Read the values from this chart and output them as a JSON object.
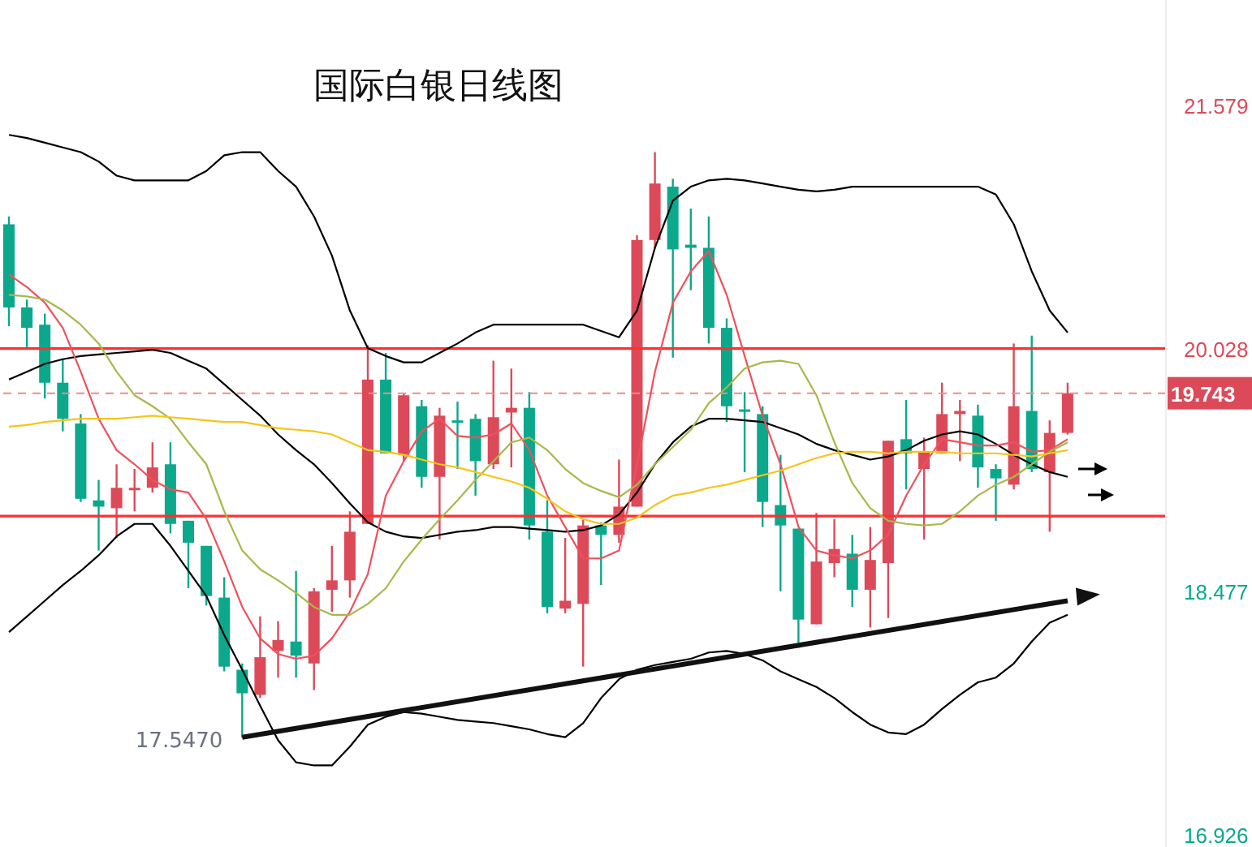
{
  "chart_data": {
    "type": "candlestick",
    "title": "国际白银日线图",
    "categories": [
      null,
      null,
      null,
      null,
      null,
      null,
      null,
      null,
      null,
      null,
      null,
      null,
      null,
      null,
      null,
      null,
      null,
      null,
      null,
      null,
      null,
      null,
      null,
      null,
      null,
      null,
      null,
      null,
      null,
      null,
      null,
      null,
      null,
      null,
      null,
      null,
      null,
      null,
      null,
      null,
      null,
      null,
      null,
      null,
      null,
      null,
      null,
      null,
      null,
      null,
      null,
      null,
      null,
      null,
      null,
      null,
      null,
      null,
      null,
      null
    ],
    "ohlc": [
      [
        20.82,
        20.87,
        20.17,
        20.29
      ],
      [
        20.29,
        20.34,
        20.03,
        20.16
      ],
      [
        20.18,
        20.25,
        19.71,
        19.81
      ],
      [
        19.81,
        19.96,
        19.5,
        19.58
      ],
      [
        19.55,
        19.61,
        19.05,
        19.07
      ],
      [
        19.06,
        19.19,
        18.74,
        19.02
      ],
      [
        19.01,
        19.29,
        18.82,
        19.14
      ],
      [
        19.13,
        19.26,
        18.99,
        19.14
      ],
      [
        19.14,
        19.43,
        19.11,
        19.27
      ],
      [
        19.29,
        19.43,
        18.85,
        18.91
      ],
      [
        18.93,
        18.93,
        18.5,
        18.79
      ],
      [
        18.77,
        18.77,
        18.39,
        18.45
      ],
      [
        18.44,
        18.57,
        17.97,
        18.0
      ],
      [
        17.98,
        18.02,
        17.547,
        17.83
      ],
      [
        17.82,
        18.32,
        17.8,
        18.06
      ],
      [
        18.1,
        18.29,
        17.93,
        18.17
      ],
      [
        18.16,
        18.61,
        17.93,
        18.07
      ],
      [
        18.02,
        18.5,
        17.85,
        18.48
      ],
      [
        18.49,
        18.77,
        18.35,
        18.55
      ],
      [
        18.55,
        18.99,
        18.44,
        18.86
      ],
      [
        18.91,
        20.05,
        18.91,
        19.83
      ],
      [
        19.83,
        20.0,
        19.36,
        19.36
      ],
      [
        19.35,
        19.74,
        19.31,
        19.73
      ],
      [
        19.66,
        19.7,
        19.14,
        19.21
      ],
      [
        19.21,
        19.65,
        18.81,
        19.6
      ],
      [
        19.57,
        19.69,
        19.26,
        19.56
      ],
      [
        19.58,
        19.61,
        19.09,
        19.31
      ],
      [
        19.29,
        19.95,
        19.26,
        19.59
      ],
      [
        19.62,
        19.9,
        19.27,
        19.65
      ],
      [
        19.65,
        19.75,
        18.81,
        18.9
      ],
      [
        18.86,
        19.06,
        18.34,
        18.38
      ],
      [
        18.37,
        18.82,
        18.34,
        18.42
      ],
      [
        18.4,
        18.94,
        18.0,
        18.9
      ],
      [
        18.9,
        18.92,
        18.52,
        18.84
      ],
      [
        18.84,
        19.32,
        18.79,
        19.02
      ],
      [
        19.02,
        20.75,
        19.02,
        20.72
      ],
      [
        20.72,
        21.28,
        20.67,
        21.08
      ],
      [
        21.06,
        21.11,
        19.97,
        20.66
      ],
      [
        20.69,
        20.92,
        20.4,
        20.67
      ],
      [
        20.67,
        20.87,
        20.06,
        20.16
      ],
      [
        20.16,
        20.22,
        19.56,
        19.66
      ],
      [
        19.64,
        19.75,
        19.24,
        19.63
      ],
      [
        19.61,
        19.66,
        18.89,
        19.05
      ],
      [
        19.03,
        19.35,
        18.48,
        18.9
      ],
      [
        18.88,
        18.88,
        18.12,
        18.3
      ],
      [
        18.27,
        18.98,
        18.27,
        18.67
      ],
      [
        18.66,
        18.94,
        18.57,
        18.75
      ],
      [
        18.72,
        18.84,
        18.38,
        18.49
      ],
      [
        18.49,
        18.89,
        18.25,
        18.68
      ],
      [
        18.66,
        19.44,
        18.31,
        19.44
      ],
      [
        19.45,
        19.7,
        19.13,
        19.36
      ],
      [
        19.26,
        19.46,
        18.81,
        19.37
      ],
      [
        19.36,
        19.81,
        19.36,
        19.61
      ],
      [
        19.61,
        19.7,
        19.31,
        19.63
      ],
      [
        19.6,
        19.67,
        19.14,
        19.27
      ],
      [
        19.26,
        19.29,
        18.93,
        19.2
      ],
      [
        19.16,
        20.06,
        19.13,
        19.66
      ],
      [
        19.63,
        20.11,
        19.24,
        19.26
      ],
      [
        19.24,
        19.57,
        18.86,
        19.49
      ],
      [
        19.49,
        19.81,
        19.48,
        19.743
      ]
    ],
    "colors": [
      "#0ca88c",
      "#0ca88c",
      "#0ca88c",
      "#0ca88c",
      "#0ca88c",
      "#0ca88c",
      "#dc4a5a",
      "#dc4a5a",
      "#dc4a5a",
      "#0ca88c",
      "#0ca88c",
      "#0ca88c",
      "#0ca88c",
      "#0ca88c",
      "#dc4a5a",
      "#dc4a5a",
      "#0ca88c",
      "#dc4a5a",
      "#dc4a5a",
      "#dc4a5a",
      "#dc4a5a",
      "#0ca88c",
      "#dc4a5a",
      "#0ca88c",
      "#dc4a5a",
      "#0ca88c",
      "#0ca88c",
      "#dc4a5a",
      "#dc4a5a",
      "#0ca88c",
      "#0ca88c",
      "#dc4a5a",
      "#dc4a5a",
      "#0ca88c",
      "#dc4a5a",
      "#dc4a5a",
      "#dc4a5a",
      "#0ca88c",
      "#0ca88c",
      "#0ca88c",
      "#0ca88c",
      "#0ca88c",
      "#0ca88c",
      "#0ca88c",
      "#0ca88c",
      "#dc4a5a",
      "#dc4a5a",
      "#0ca88c",
      "#dc4a5a",
      "#dc4a5a",
      "#0ca88c",
      "#dc4a5a",
      "#dc4a5a",
      "#dc4a5a",
      "#0ca88c",
      "#0ca88c",
      "#dc4a5a",
      "#0ca88c",
      "#dc4a5a",
      "#dc4a5a"
    ],
    "series": [
      {
        "type": "line",
        "color": "#000000",
        "values": [
          21.39,
          21.37,
          21.34,
          21.31,
          21.28,
          21.22,
          21.13,
          21.1,
          21.1,
          21.1,
          21.1,
          21.16,
          21.26,
          21.28,
          21.28,
          21.16,
          21.06,
          20.87,
          20.62,
          20.27,
          20.03,
          19.98,
          19.94,
          19.94,
          20.0,
          20.06,
          20.13,
          20.18,
          20.18,
          20.18,
          20.18,
          20.18,
          20.18,
          20.14,
          20.1,
          20.27,
          20.67,
          20.97,
          21.06,
          21.1,
          21.11,
          21.1,
          21.08,
          21.06,
          21.04,
          21.03,
          21.04,
          21.06,
          21.06,
          21.06,
          21.06,
          21.06,
          21.06,
          21.06,
          21.06,
          21.01,
          20.82,
          20.52,
          20.27,
          20.13
        ]
      },
      {
        "type": "line",
        "color": "#000000",
        "values": [
          19.83,
          19.88,
          19.93,
          19.96,
          19.98,
          19.99,
          20.0,
          20.01,
          20.02,
          20.0,
          19.95,
          19.9,
          19.8,
          19.7,
          19.6,
          19.48,
          19.38,
          19.29,
          19.17,
          19.04,
          18.92,
          18.86,
          18.83,
          18.82,
          18.84,
          18.86,
          18.87,
          18.89,
          18.89,
          18.88,
          18.87,
          18.86,
          18.87,
          18.9,
          18.97,
          19.11,
          19.29,
          19.43,
          19.53,
          19.58,
          19.58,
          19.57,
          19.56,
          19.52,
          19.48,
          19.42,
          19.38,
          19.35,
          19.32,
          19.34,
          19.38,
          19.44,
          19.48,
          19.5,
          19.48,
          19.42,
          19.35,
          19.29,
          19.24,
          19.21
        ]
      },
      {
        "type": "line",
        "color": "#000000",
        "values": [
          18.22,
          18.32,
          18.42,
          18.52,
          18.61,
          18.71,
          18.83,
          18.91,
          18.91,
          18.77,
          18.61,
          18.45,
          18.2,
          17.98,
          17.75,
          17.53,
          17.39,
          17.37,
          17.37,
          17.49,
          17.63,
          17.68,
          17.71,
          17.7,
          17.68,
          17.66,
          17.65,
          17.64,
          17.62,
          17.6,
          17.57,
          17.55,
          17.64,
          17.8,
          17.92,
          17.98,
          18.01,
          18.03,
          18.05,
          18.09,
          18.1,
          18.08,
          18.04,
          17.97,
          17.92,
          17.87,
          17.8,
          17.71,
          17.63,
          17.58,
          17.57,
          17.63,
          17.73,
          17.82,
          17.9,
          17.93,
          18.02,
          18.16,
          18.28,
          18.33
        ]
      },
      {
        "type": "line",
        "color": "#f0505a",
        "values": [
          20.5,
          20.42,
          20.32,
          20.16,
          19.88,
          19.58,
          19.38,
          19.29,
          19.19,
          19.13,
          19.11,
          18.94,
          18.67,
          18.38,
          18.18,
          18.08,
          18.05,
          18.07,
          18.18,
          18.35,
          18.59,
          19.09,
          19.31,
          19.5,
          19.58,
          19.47,
          19.46,
          19.48,
          19.55,
          19.38,
          19.09,
          18.89,
          18.69,
          18.69,
          18.74,
          19.29,
          19.88,
          20.32,
          20.52,
          20.65,
          20.37,
          19.98,
          19.6,
          19.29,
          18.89,
          18.74,
          18.71,
          18.69,
          18.74,
          18.84,
          19.09,
          19.29,
          19.45,
          19.43,
          19.41,
          19.41,
          19.43,
          19.37,
          19.38,
          19.45
        ]
      },
      {
        "type": "line",
        "color": "#a8b84a",
        "values": [
          20.37,
          20.36,
          20.34,
          20.27,
          20.18,
          20.06,
          19.88,
          19.73,
          19.66,
          19.58,
          19.43,
          19.29,
          18.99,
          18.74,
          18.62,
          18.55,
          18.47,
          18.38,
          18.33,
          18.33,
          18.4,
          18.5,
          18.67,
          18.81,
          18.94,
          19.06,
          19.19,
          19.31,
          19.43,
          19.46,
          19.38,
          19.26,
          19.17,
          19.12,
          19.08,
          19.16,
          19.29,
          19.4,
          19.51,
          19.68,
          19.78,
          19.9,
          19.94,
          19.95,
          19.93,
          19.73,
          19.43,
          19.17,
          19.01,
          18.93,
          18.91,
          18.9,
          18.91,
          18.99,
          19.09,
          19.16,
          19.21,
          19.29,
          19.37,
          19.43
        ]
      },
      {
        "type": "line",
        "color": "#f5c518",
        "values": [
          19.53,
          19.54,
          19.56,
          19.57,
          19.58,
          19.58,
          19.58,
          19.59,
          19.6,
          19.59,
          19.58,
          19.57,
          19.56,
          19.56,
          19.54,
          19.52,
          19.51,
          19.5,
          19.48,
          19.43,
          19.38,
          19.37,
          19.35,
          19.32,
          19.29,
          19.27,
          19.24,
          19.21,
          19.18,
          19.14,
          19.07,
          18.99,
          18.94,
          18.91,
          18.91,
          18.95,
          19.03,
          19.09,
          19.11,
          19.14,
          19.16,
          19.19,
          19.22,
          19.25,
          19.29,
          19.33,
          19.36,
          19.37,
          19.37,
          19.36,
          19.37,
          19.37,
          19.37,
          19.36,
          19.36,
          19.36,
          19.35,
          19.34,
          19.36,
          19.38
        ]
      },
      {
        "type": "line",
        "color": "#111111",
        "values": [
          null,
          null,
          null,
          null,
          null,
          null,
          null,
          null,
          null,
          null,
          null,
          null,
          null,
          17.55,
          null,
          null,
          null,
          null,
          null,
          null,
          null,
          null,
          null,
          null,
          null,
          null,
          null,
          null,
          null,
          null,
          null,
          null,
          null,
          null,
          null,
          null,
          null,
          null,
          null,
          null,
          null,
          null,
          null,
          null,
          null,
          null,
          null,
          null,
          null,
          null,
          null,
          null,
          null,
          null,
          null,
          null,
          null,
          null,
          null,
          18.42
        ]
      }
    ],
    "marker": "none",
    "ylim": [
      16.85,
      22.25
    ],
    "yticks": [
      21.579,
      20.028,
      18.477,
      16.926
    ],
    "tick_labels": "y",
    "grid": false,
    "ref_lines": [
      {
        "axis": "y",
        "value": 20.028,
        "color": "#ff3030"
      },
      {
        "axis": "y",
        "value": 18.96,
        "color": "#ff3030"
      },
      {
        "axis": "y",
        "value": 19.743,
        "label": "19.743",
        "color": "#f08a8a",
        "line_style": "dashed"
      }
    ],
    "annotations": [
      "17.5470"
    ]
  }
}
